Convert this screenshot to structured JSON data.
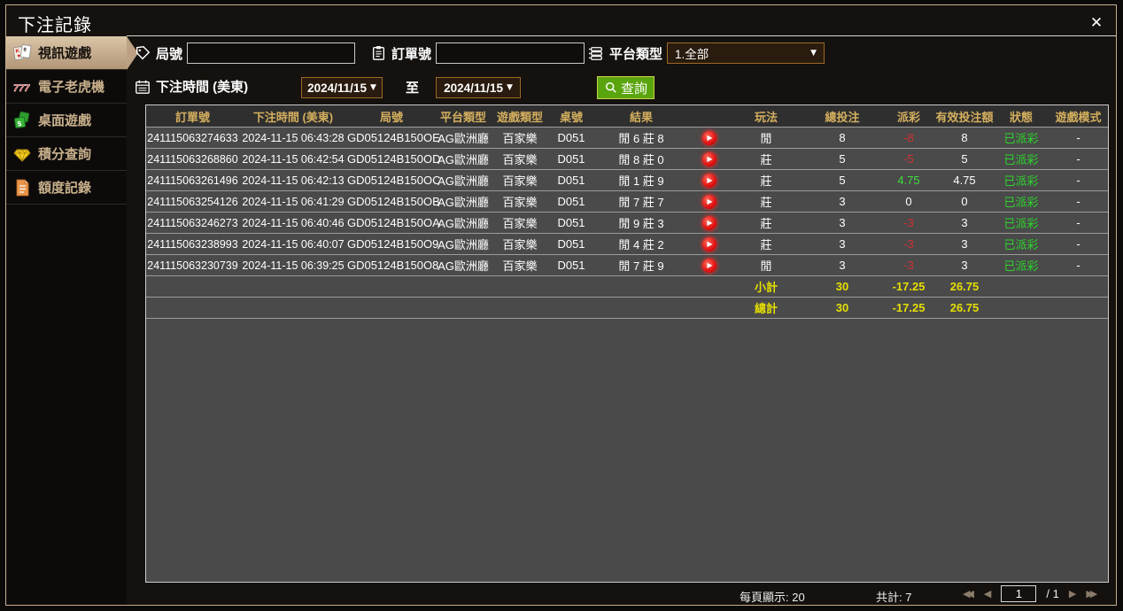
{
  "dialog": {
    "title": "下注記錄"
  },
  "icons": {
    "close": "✕",
    "chevron_down": "▼",
    "play": "▶",
    "page_first": "◀◀",
    "page_prev": "◀",
    "page_next": "▶",
    "page_last": "▶▶"
  },
  "sidebar": {
    "items": [
      {
        "id": "video-games",
        "label": "視訊遊戲",
        "icon": "cards-icon",
        "active": true
      },
      {
        "id": "slot-machines",
        "label": "電子老虎機",
        "icon": "slots-icon",
        "active": false
      },
      {
        "id": "table-games",
        "label": "桌面遊戲",
        "icon": "dice-icon",
        "active": false
      },
      {
        "id": "points-inquiry",
        "label": "積分查詢",
        "icon": "diamond-icon",
        "active": false
      },
      {
        "id": "credit-records",
        "label": "額度記錄",
        "icon": "document-icon",
        "active": false
      }
    ]
  },
  "filters": {
    "round_label": "局號",
    "round_value": "",
    "order_label": "訂單號",
    "order_value": "",
    "platform_label": "平台類型",
    "platform_value": "1.全部",
    "time_label": "下注時間 (美東)",
    "date_from": "2024/11/15",
    "to_label": "至",
    "date_to": "2024/11/15",
    "search_label": "查詢"
  },
  "table": {
    "columns": [
      {
        "key": "order_no",
        "label": "訂單號"
      },
      {
        "key": "bet_time",
        "label": "下注時間 (美東)"
      },
      {
        "key": "round_no",
        "label": "局號"
      },
      {
        "key": "platform",
        "label": "平台類型"
      },
      {
        "key": "game_type",
        "label": "遊戲類型"
      },
      {
        "key": "table_no",
        "label": "桌號"
      },
      {
        "key": "result",
        "label": "結果"
      },
      {
        "key": "play",
        "label": ""
      },
      {
        "key": "bet_option",
        "label": "玩法"
      },
      {
        "key": "total_bet",
        "label": "總投注"
      },
      {
        "key": "payout",
        "label": "派彩"
      },
      {
        "key": "valid_bet",
        "label": "有效投注額"
      },
      {
        "key": "status",
        "label": "狀態"
      },
      {
        "key": "game_mode",
        "label": "遊戲模式"
      }
    ],
    "rows": [
      {
        "order_no": "241115063274633",
        "bet_time": "2024-11-15 06:43:28",
        "round_no": "GD05124B150OE",
        "platform": "AG歐洲廳",
        "game_type": "百家樂",
        "table_no": "D051",
        "result": "閒 6 莊 8",
        "bet_option": "閒",
        "total_bet": "8",
        "payout": "-8",
        "valid_bet": "8",
        "status": "已派彩",
        "game_mode": "-"
      },
      {
        "order_no": "241115063268860",
        "bet_time": "2024-11-15 06:42:54",
        "round_no": "GD05124B150OD",
        "platform": "AG歐洲廳",
        "game_type": "百家樂",
        "table_no": "D051",
        "result": "閒 8 莊 0",
        "bet_option": "莊",
        "total_bet": "5",
        "payout": "-5",
        "valid_bet": "5",
        "status": "已派彩",
        "game_mode": "-"
      },
      {
        "order_no": "241115063261496",
        "bet_time": "2024-11-15 06:42:13",
        "round_no": "GD05124B150OC",
        "platform": "AG歐洲廳",
        "game_type": "百家樂",
        "table_no": "D051",
        "result": "閒 1 莊 9",
        "bet_option": "莊",
        "total_bet": "5",
        "payout": "4.75",
        "valid_bet": "4.75",
        "status": "已派彩",
        "game_mode": "-"
      },
      {
        "order_no": "241115063254126",
        "bet_time": "2024-11-15 06:41:29",
        "round_no": "GD05124B150OB",
        "platform": "AG歐洲廳",
        "game_type": "百家樂",
        "table_no": "D051",
        "result": "閒 7 莊 7",
        "bet_option": "莊",
        "total_bet": "3",
        "payout": "0",
        "valid_bet": "0",
        "status": "已派彩",
        "game_mode": "-"
      },
      {
        "order_no": "241115063246273",
        "bet_time": "2024-11-15 06:40:46",
        "round_no": "GD05124B150OA",
        "platform": "AG歐洲廳",
        "game_type": "百家樂",
        "table_no": "D051",
        "result": "閒 9 莊 3",
        "bet_option": "莊",
        "total_bet": "3",
        "payout": "-3",
        "valid_bet": "3",
        "status": "已派彩",
        "game_mode": "-"
      },
      {
        "order_no": "241115063238993",
        "bet_time": "2024-11-15 06:40:07",
        "round_no": "GD05124B150O9",
        "platform": "AG歐洲廳",
        "game_type": "百家樂",
        "table_no": "D051",
        "result": "閒 4 莊 2",
        "bet_option": "莊",
        "total_bet": "3",
        "payout": "-3",
        "valid_bet": "3",
        "status": "已派彩",
        "game_mode": "-"
      },
      {
        "order_no": "241115063230739",
        "bet_time": "2024-11-15 06:39:25",
        "round_no": "GD05124B150O8",
        "platform": "AG歐洲廳",
        "game_type": "百家樂",
        "table_no": "D051",
        "result": "閒 7 莊 9",
        "bet_option": "閒",
        "total_bet": "3",
        "payout": "-3",
        "valid_bet": "3",
        "status": "已派彩",
        "game_mode": "-"
      }
    ],
    "sum_rows": [
      {
        "label": "小計",
        "total_bet": "30",
        "payout": "-17.25",
        "valid_bet": "26.75"
      },
      {
        "label": "總計",
        "total_bet": "30",
        "payout": "-17.25",
        "valid_bet": "26.75"
      }
    ]
  },
  "footer": {
    "per_page_label": "每頁顯示: 20",
    "total_label": "共計: 7",
    "page_value": "1",
    "page_total": "/  1"
  },
  "colors": {
    "accent_border": "#c5ad8e",
    "header_text": "#d4af5e",
    "row_bg": "#4a4a4a",
    "payout_negative": "#d03030",
    "payout_positive": "#3ddc3d",
    "status_paid": "#2bd52b",
    "sum_text": "#e6df00",
    "search_button": "#5aa50e",
    "picker_border": "#9e6a25",
    "play_red": "#e01010"
  }
}
